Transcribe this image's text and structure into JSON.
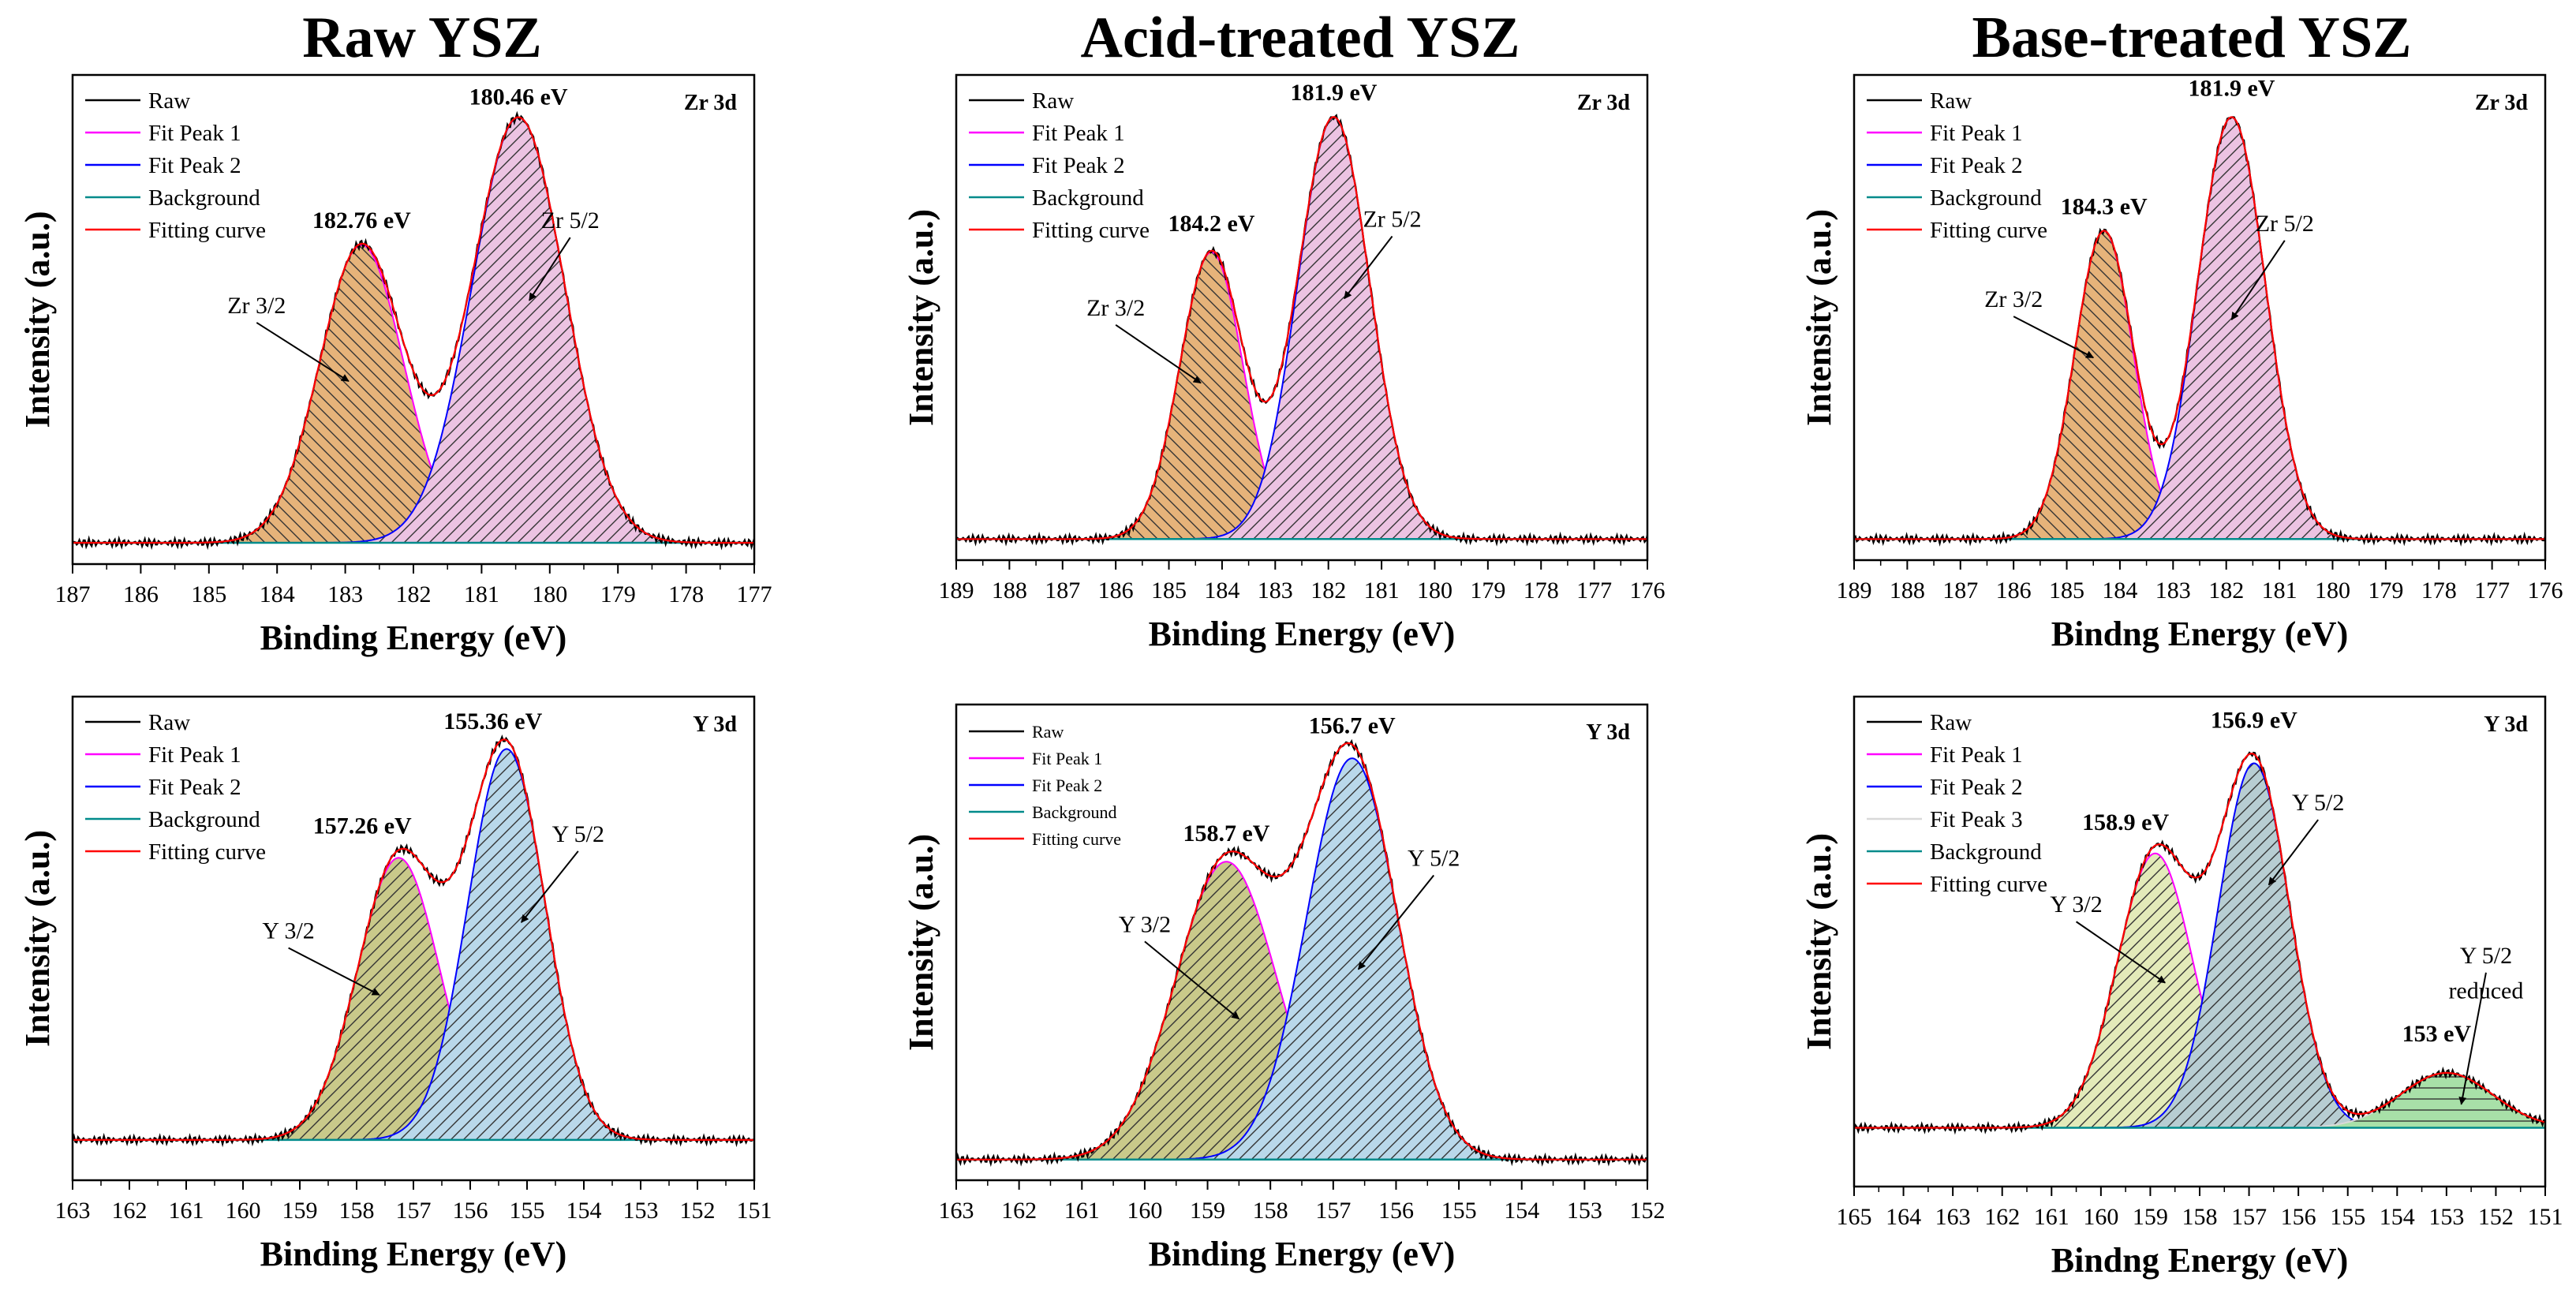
{
  "column_titles": [
    "Raw YSZ",
    "Acid-treated YSZ",
    "Base-treated YSZ"
  ],
  "colors": {
    "raw": "#000000",
    "fit1": "#ff00ff",
    "fit2": "#0000ff",
    "fit3": "#d9d9d9",
    "background": "#008b8b",
    "fit_curve": "#ff0000",
    "fill_zr32": "#e6b37a",
    "fill_zr52": "#ecc3e2",
    "fill_y32_raw": "#c9c98a",
    "fill_y32_light": "#e3eab9",
    "fill_y52": "#b9d8ea",
    "fill_y52_base": "#b7cdd2",
    "fill_reduced": "#a8e0a8"
  },
  "chart_data": [
    {
      "id": "raw-zr",
      "type": "line",
      "title": "Raw YSZ",
      "corner": "Zr 3d",
      "xlabel": "Binding Energy (eV)",
      "ylabel": "Intensity (a.u.)",
      "xlim": [
        187,
        177
      ],
      "ticks": [
        187,
        186,
        185,
        184,
        183,
        182,
        181,
        180,
        179,
        178,
        177
      ],
      "baseline": 0,
      "ylim": [
        -0.05,
        1.1
      ],
      "legend": [
        "Raw",
        "Fit Peak 1",
        "Fit Peak 2",
        "Background",
        "Fitting curve"
      ],
      "legend_style": "normal",
      "series": [
        {
          "name": "Fit Peak 1",
          "center": 182.76,
          "amplitude": 0.7,
          "fwhm": 1.45,
          "fill": "fill_zr32",
          "hatch": "back"
        },
        {
          "name": "Fit Peak 2",
          "center": 180.46,
          "amplitude": 1.0,
          "fwhm": 1.6,
          "fill": "fill_zr52",
          "hatch": "fwd"
        }
      ],
      "peak_labels": [
        {
          "text": "182.76 eV",
          "x": 182.76,
          "y": 0.74
        },
        {
          "text": "180.46 eV",
          "x": 180.46,
          "y": 1.03
        }
      ],
      "annotations": [
        {
          "text": "Zr 3/2",
          "tx": 184.3,
          "ty": 0.54,
          "ax": 182.95,
          "ay": 0.38
        },
        {
          "text": "Zr 5/2",
          "tx": 179.7,
          "ty": 0.74,
          "ax": 180.3,
          "ay": 0.57
        }
      ]
    },
    {
      "id": "acid-zr",
      "type": "line",
      "title": "Acid-treated YSZ",
      "corner": "Zr 3d",
      "xlabel": "Binding Energy (eV)",
      "ylabel": "Intensity (a.u.)",
      "xlim": [
        189,
        176
      ],
      "ticks": [
        189,
        188,
        187,
        186,
        185,
        184,
        183,
        182,
        181,
        180,
        179,
        178,
        177,
        176
      ],
      "baseline": 0,
      "ylim": [
        -0.05,
        1.1
      ],
      "legend": [
        "Raw",
        "Fit Peak 1",
        "Fit Peak 2",
        "Background",
        "Fitting curve"
      ],
      "legend_style": "normal",
      "series": [
        {
          "name": "Fit Peak 1",
          "center": 184.2,
          "amplitude": 0.68,
          "fwhm": 1.4,
          "fill": "fill_zr32",
          "hatch": "back"
        },
        {
          "name": "Fit Peak 2",
          "center": 181.9,
          "amplitude": 1.0,
          "fwhm": 1.6,
          "fill": "fill_zr52",
          "hatch": "fwd"
        }
      ],
      "peak_labels": [
        {
          "text": "184.2 eV",
          "x": 184.2,
          "y": 0.73
        },
        {
          "text": "181.9 eV",
          "x": 181.9,
          "y": 1.04
        }
      ],
      "annotations": [
        {
          "text": "Zr 3/2",
          "tx": 186.0,
          "ty": 0.53,
          "ax": 184.4,
          "ay": 0.37
        },
        {
          "text": "Zr 5/2",
          "tx": 180.8,
          "ty": 0.74,
          "ax": 181.7,
          "ay": 0.57
        }
      ]
    },
    {
      "id": "base-zr",
      "type": "line",
      "title": "Base-treated YSZ",
      "corner": "Zr 3d",
      "xlabel": "Bindng Energy (eV)",
      "ylabel": "Intensity (a.u.)",
      "xlim": [
        189,
        176
      ],
      "ticks": [
        189,
        188,
        187,
        186,
        185,
        184,
        183,
        182,
        181,
        180,
        179,
        178,
        177,
        176
      ],
      "baseline": 0,
      "ylim": [
        -0.05,
        1.1
      ],
      "legend": [
        "Raw",
        "Fit Peak 1",
        "Fit Peak 2",
        "Background",
        "Fitting curve"
      ],
      "legend_style": "normal",
      "series": [
        {
          "name": "Fit Peak 1",
          "center": 184.3,
          "amplitude": 0.73,
          "fwhm": 1.3,
          "fill": "fill_zr32",
          "hatch": "back"
        },
        {
          "name": "Fit Peak 2",
          "center": 181.9,
          "amplitude": 1.0,
          "fwhm": 1.5,
          "fill": "fill_zr52",
          "hatch": "fwd"
        }
      ],
      "peak_labels": [
        {
          "text": "184.3 eV",
          "x": 184.3,
          "y": 0.77
        },
        {
          "text": "181.9 eV",
          "x": 181.9,
          "y": 1.05
        }
      ],
      "annotations": [
        {
          "text": "Zr 3/2",
          "tx": 186.0,
          "ty": 0.55,
          "ax": 184.5,
          "ay": 0.43
        },
        {
          "text": "Zr 5/2",
          "tx": 180.9,
          "ty": 0.73,
          "ax": 181.9,
          "ay": 0.52
        }
      ]
    },
    {
      "id": "raw-y",
      "type": "line",
      "title": "Raw YSZ",
      "corner": "Y 3d",
      "xlabel": "Binding Energy (eV)",
      "ylabel": "Intensity (a.u.)",
      "xlim": [
        163,
        151
      ],
      "ticks": [
        163,
        162,
        161,
        160,
        159,
        158,
        157,
        156,
        155,
        154,
        153,
        152,
        151
      ],
      "baseline": 0,
      "ylim": [
        -0.1,
        1.1
      ],
      "legend": [
        "Raw",
        "Fit Peak 1",
        "Fit Peak 2",
        "Background",
        "Fitting curve"
      ],
      "legend_style": "normal",
      "series": [
        {
          "name": "Fit Peak 1",
          "center": 157.26,
          "amplitude": 0.7,
          "fwhm": 1.7,
          "fill": "fill_y32_raw",
          "hatch": "fwd"
        },
        {
          "name": "Fit Peak 2",
          "center": 155.36,
          "amplitude": 0.97,
          "fwhm": 1.6,
          "fill": "fill_y52",
          "hatch": "fwd"
        }
      ],
      "peak_labels": [
        {
          "text": "157.26 eV",
          "x": 157.9,
          "y": 0.76
        },
        {
          "text": "155.36 eV",
          "x": 155.6,
          "y": 1.02
        }
      ],
      "annotations": [
        {
          "text": "Y 3/2",
          "tx": 159.2,
          "ty": 0.5,
          "ax": 157.6,
          "ay": 0.36
        },
        {
          "text": "Y 5/2",
          "tx": 154.1,
          "ty": 0.74,
          "ax": 155.1,
          "ay": 0.54
        }
      ]
    },
    {
      "id": "acid-y",
      "type": "line",
      "title": "Acid-treated YSZ",
      "corner": "Y 3d",
      "xlabel": "Binding Energy (eV)",
      "ylabel": "Intensity (a.u.)",
      "xlim": [
        163,
        152
      ],
      "ticks": [
        163,
        162,
        161,
        160,
        159,
        158,
        157,
        156,
        155,
        154,
        153,
        152
      ],
      "baseline": 0,
      "ylim": [
        -0.05,
        1.1
      ],
      "legend": [
        "Raw",
        "Fit Peak 1",
        "Fit Peak 2",
        "Background",
        "Fitting curve"
      ],
      "legend_style": "small",
      "series": [
        {
          "name": "Fit Peak 1",
          "center": 158.7,
          "amplitude": 0.72,
          "fwhm": 1.9,
          "fill": "fill_y32_raw",
          "hatch": "fwd"
        },
        {
          "name": "Fit Peak 2",
          "center": 156.7,
          "amplitude": 0.97,
          "fwhm": 1.7,
          "fill": "fill_y52",
          "hatch": "fwd"
        }
      ],
      "peak_labels": [
        {
          "text": "158.7 eV",
          "x": 158.7,
          "y": 0.77
        },
        {
          "text": "156.7 eV",
          "x": 156.7,
          "y": 1.03
        }
      ],
      "annotations": [
        {
          "text": "Y 3/2",
          "tx": 160.0,
          "ty": 0.55,
          "ax": 158.5,
          "ay": 0.34
        },
        {
          "text": "Y 5/2",
          "tx": 155.4,
          "ty": 0.71,
          "ax": 156.6,
          "ay": 0.46
        }
      ]
    },
    {
      "id": "base-y",
      "type": "line",
      "title": "Base-treated YSZ",
      "corner": "Y 3d",
      "xlabel": "Bindng Energy (eV)",
      "ylabel": "Intensity (a.u.)",
      "xlim": [
        165,
        151
      ],
      "ticks": [
        165,
        164,
        163,
        162,
        161,
        160,
        159,
        158,
        157,
        156,
        155,
        154,
        153,
        152,
        151
      ],
      "baseline": 0,
      "ylim": [
        -0.15,
        1.1
      ],
      "legend": [
        "Raw",
        "Fit Peak 1",
        "Fit Peak 2",
        "Fit Peak 3",
        "Background",
        "Fitting curve"
      ],
      "legend_style": "normal",
      "series": [
        {
          "name": "Fit Peak 1",
          "center": 158.9,
          "amplitude": 0.7,
          "fwhm": 1.8,
          "fill": "fill_y32_light",
          "hatch": "fwd"
        },
        {
          "name": "Fit Peak 2",
          "center": 156.9,
          "amplitude": 0.93,
          "fwhm": 1.7,
          "fill": "fill_y52_base",
          "hatch": "fwd"
        },
        {
          "name": "Fit Peak 3",
          "center": 153.0,
          "amplitude": 0.14,
          "fwhm": 2.2,
          "fill": "fill_reduced",
          "hatch": "horiz"
        }
      ],
      "peak_labels": [
        {
          "text": "158.9 eV",
          "x": 159.5,
          "y": 0.76
        },
        {
          "text": "156.9 eV",
          "x": 156.9,
          "y": 1.02
        },
        {
          "text": "153 eV",
          "x": 153.2,
          "y": 0.22
        }
      ],
      "annotations": [
        {
          "text": "Y 3/2",
          "tx": 160.5,
          "ty": 0.55,
          "ax": 158.7,
          "ay": 0.37
        },
        {
          "text": "Y 5/2",
          "tx": 155.6,
          "ty": 0.81,
          "ax": 156.6,
          "ay": 0.62
        },
        {
          "text": "Y 5/2",
          "tx": 152.2,
          "ty": 0.42,
          "ax": 152.7,
          "ay": 0.06
        },
        {
          "text": "reduced",
          "tx": 152.2,
          "ty": 0.33,
          "ax": null,
          "ay": null
        }
      ]
    }
  ]
}
